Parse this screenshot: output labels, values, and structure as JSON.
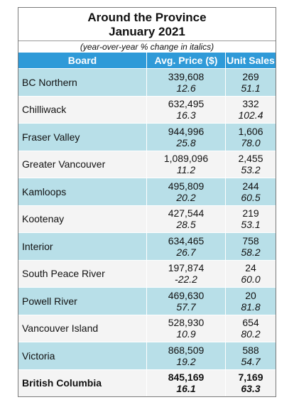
{
  "title": {
    "line1": "Around the Province",
    "line2": "January 2021",
    "subtitle": "(year-over-year % change in italics)"
  },
  "headers": {
    "board": "Board",
    "price": "Avg. Price ($)",
    "sales": "Unit Sales"
  },
  "rows": [
    {
      "board": "BC Northern",
      "price": "339,608",
      "price_chg": "12.6",
      "sales": "269",
      "sales_chg": "51.1"
    },
    {
      "board": "Chilliwack",
      "price": "632,495",
      "price_chg": "16.3",
      "sales": "332",
      "sales_chg": "102.4"
    },
    {
      "board": "Fraser Valley",
      "price": "944,996",
      "price_chg": "25.8",
      "sales": "1,606",
      "sales_chg": "78.0"
    },
    {
      "board": "Greater Vancouver",
      "price": "1,089,096",
      "price_chg": "11.2",
      "sales": "2,455",
      "sales_chg": "53.2"
    },
    {
      "board": "Kamloops",
      "price": "495,809",
      "price_chg": "20.2",
      "sales": "244",
      "sales_chg": "60.5"
    },
    {
      "board": "Kootenay",
      "price": "427,544",
      "price_chg": "28.5",
      "sales": "219",
      "sales_chg": "53.1"
    },
    {
      "board": "Interior",
      "price": "634,465",
      "price_chg": "26.7",
      "sales": "758",
      "sales_chg": "58.2"
    },
    {
      "board": "South Peace River",
      "price": "197,874",
      "price_chg": "-22.2",
      "sales": "24",
      "sales_chg": "60.0"
    },
    {
      "board": "Powell River",
      "price": "469,630",
      "price_chg": "57.7",
      "sales": "20",
      "sales_chg": "81.8"
    },
    {
      "board": "Vancouver Island",
      "price": "528,930",
      "price_chg": "10.9",
      "sales": "654",
      "sales_chg": "80.2"
    },
    {
      "board": "Victoria",
      "price": "868,509",
      "price_chg": "19.2",
      "sales": "588",
      "sales_chg": "54.7"
    },
    {
      "board": "British Columbia",
      "price": "845,169",
      "price_chg": "16.1",
      "sales": "7,169",
      "sales_chg": "63.3"
    }
  ],
  "colors": {
    "header_bg": "#2f9ad8",
    "row_shaded": "#b8dfe8",
    "row_plain": "#f4f4f4"
  }
}
